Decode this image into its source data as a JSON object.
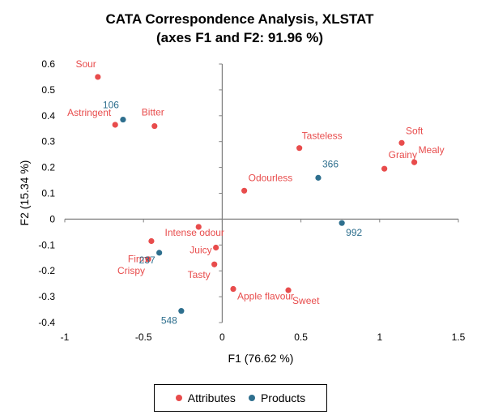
{
  "chart_data": {
    "type": "scatter",
    "title": "CATA Correspondence Analysis, XLSTAT",
    "subtitle": "(axes F1 and F2: 91.96 %)",
    "xlabel": "F1 (76.62 %)",
    "ylabel": "F2 (15.34 %)",
    "xlim": [
      -1,
      1.5
    ],
    "ylim": [
      -0.4,
      0.6
    ],
    "xticks": [
      "-1",
      "-0.5",
      "0",
      "0.5",
      "1",
      "1.5"
    ],
    "yticks": [
      "-0.4",
      "-0.3",
      "-0.2",
      "-0.1",
      "0",
      "0.1",
      "0.2",
      "0.3",
      "0.4",
      "0.5",
      "0.6"
    ],
    "grid": false,
    "legend_position": "bottom",
    "series": [
      {
        "name": "Attributes",
        "color": "#e84c4c",
        "points": [
          {
            "label": "Sour",
            "x": -0.79,
            "y": 0.55
          },
          {
            "label": "Astringent",
            "x": -0.68,
            "y": 0.365
          },
          {
            "label": "Bitter",
            "x": -0.43,
            "y": 0.36
          },
          {
            "label": "Tasteless",
            "x": 0.49,
            "y": 0.275
          },
          {
            "label": "Soft",
            "x": 1.14,
            "y": 0.295
          },
          {
            "label": "Grainy",
            "x": 1.03,
            "y": 0.195
          },
          {
            "label": "Mealy",
            "x": 1.22,
            "y": 0.22
          },
          {
            "label": "Odourless",
            "x": 0.14,
            "y": 0.11
          },
          {
            "label": "Intense odour",
            "x": -0.15,
            "y": -0.03
          },
          {
            "label": "Firm",
            "x": -0.45,
            "y": -0.085
          },
          {
            "label": "Crispy",
            "x": -0.47,
            "y": -0.155
          },
          {
            "label": "Juicy",
            "x": -0.04,
            "y": -0.11
          },
          {
            "label": "Tasty",
            "x": -0.05,
            "y": -0.175
          },
          {
            "label": "Apple flavour",
            "x": 0.07,
            "y": -0.27
          },
          {
            "label": "Sweet",
            "x": 0.42,
            "y": -0.275
          }
        ]
      },
      {
        "name": "Products",
        "color": "#2e6f8e",
        "points": [
          {
            "label": "106",
            "x": -0.63,
            "y": 0.385
          },
          {
            "label": "366",
            "x": 0.61,
            "y": 0.16
          },
          {
            "label": "992",
            "x": 0.76,
            "y": -0.015
          },
          {
            "label": "237",
            "x": -0.4,
            "y": -0.13
          },
          {
            "label": "548",
            "x": -0.26,
            "y": -0.355
          }
        ]
      }
    ]
  }
}
